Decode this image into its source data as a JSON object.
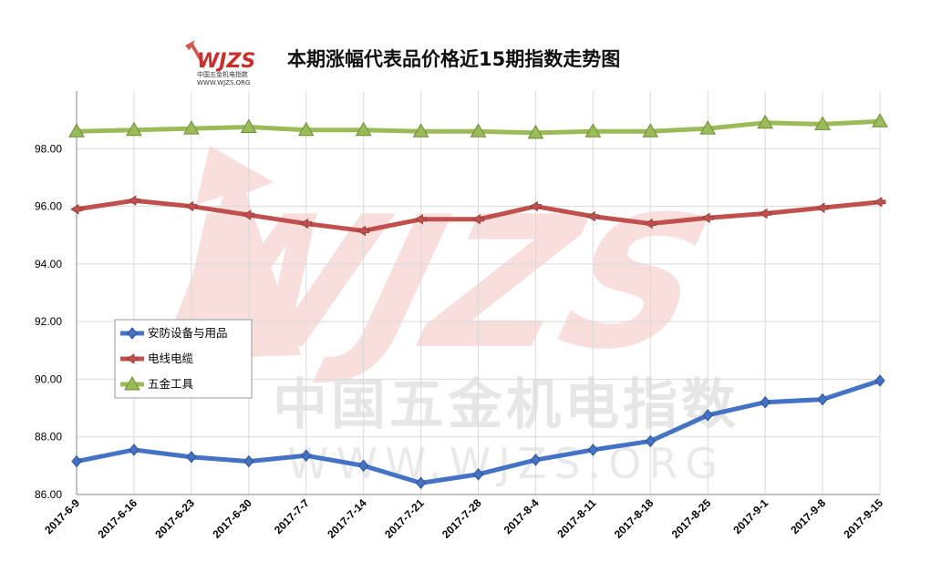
{
  "header": {
    "logo_text": "WJZS",
    "logo_sub": "中国五金机电指数",
    "logo_url": "WWW.WJZS.ORG",
    "watermark_cn": "中国五金机电指数",
    "watermark_url": "WWW.WJZS.ORG"
  },
  "chart_data": {
    "type": "line",
    "title": "本期涨幅代表品价格近15期指数走势图",
    "categories": [
      "2017-6-9",
      "2017-6-16",
      "2017-6-23",
      "2017-6-30",
      "2017-7-7",
      "2017-7-14",
      "2017-7-21",
      "2017-7-28",
      "2017-8-4",
      "2017-8-11",
      "2017-8-18",
      "2017-8-25",
      "2017-9-1",
      "2017-9-8",
      "2017-9-15"
    ],
    "ylim": [
      86,
      100
    ],
    "yticks": [
      "86.00",
      "88.00",
      "90.00",
      "92.00",
      "94.00",
      "96.00",
      "98.00"
    ],
    "grid": true,
    "legend_position": "left",
    "series": [
      {
        "name": "安防设备与用品",
        "color": "#4472C4",
        "marker": "diamond",
        "values": [
          87.15,
          87.55,
          87.3,
          87.15,
          87.35,
          87.0,
          86.4,
          86.7,
          87.2,
          87.55,
          87.85,
          88.75,
          89.2,
          89.3,
          89.95
        ]
      },
      {
        "name": "电线电缆",
        "color": "#C0504D",
        "marker": "arrow",
        "values": [
          95.9,
          96.2,
          96.0,
          95.7,
          95.4,
          95.15,
          95.55,
          95.55,
          96.0,
          95.65,
          95.4,
          95.6,
          95.75,
          95.95,
          96.15
        ]
      },
      {
        "name": "五金工具",
        "color": "#9BBB59",
        "marker": "triangle",
        "values": [
          98.6,
          98.65,
          98.7,
          98.75,
          98.65,
          98.65,
          98.6,
          98.6,
          98.55,
          98.6,
          98.6,
          98.7,
          98.9,
          98.85,
          98.95
        ]
      }
    ]
  }
}
